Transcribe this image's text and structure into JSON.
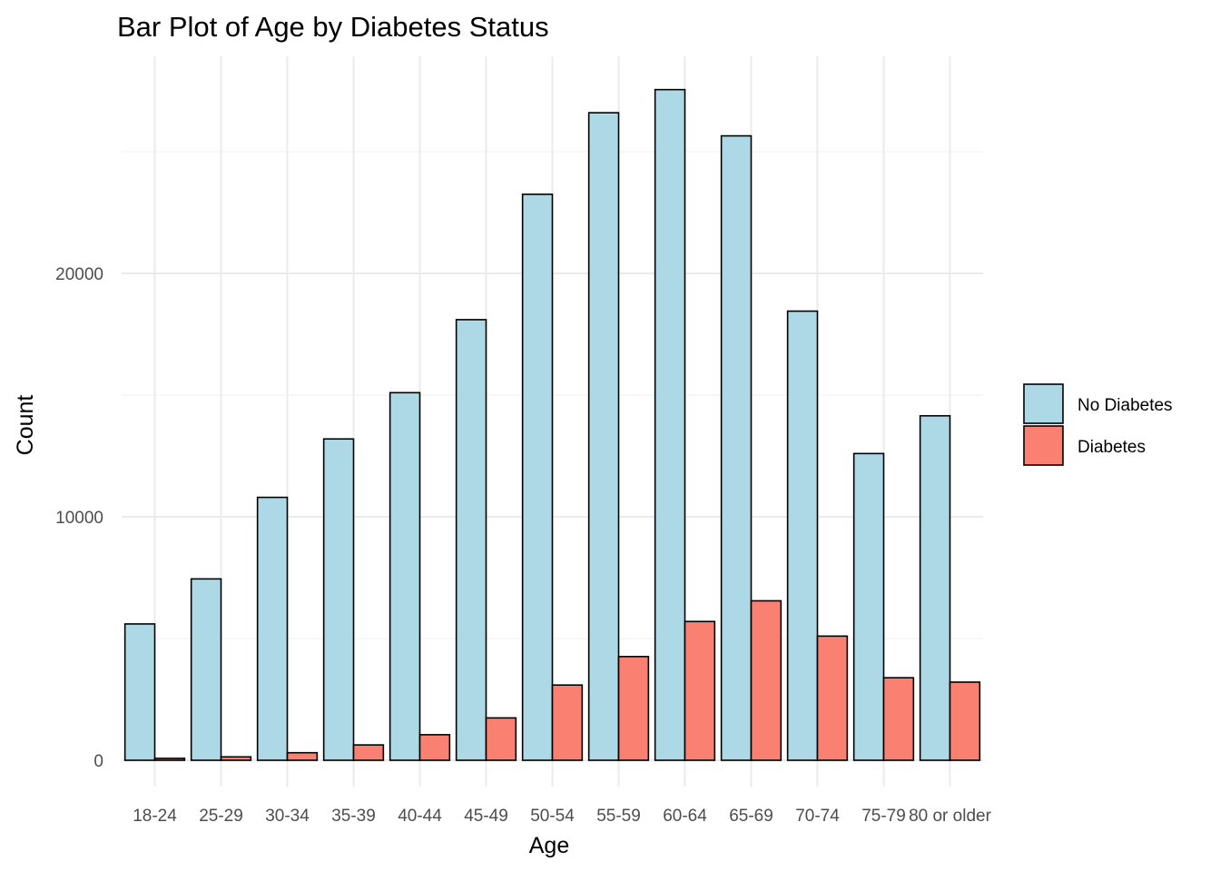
{
  "chart_data": {
    "type": "bar",
    "title": "Bar Plot of Age by Diabetes Status",
    "xlabel": "Age",
    "ylabel": "Count",
    "categories": [
      "18-24",
      "25-29",
      "30-34",
      "35-39",
      "40-44",
      "45-49",
      "50-54",
      "55-59",
      "60-64",
      "65-69",
      "70-74",
      "75-79",
      "80 or older"
    ],
    "series": [
      {
        "name": "No Diabetes",
        "color": "#ADD8E6",
        "values": [
          5600,
          7450,
          10800,
          13200,
          15100,
          18100,
          23250,
          26600,
          27550,
          25650,
          18450,
          12600,
          14150
        ]
      },
      {
        "name": "Diabetes",
        "color": "#FA8072",
        "values": [
          80,
          140,
          310,
          630,
          1050,
          1740,
          3090,
          4260,
          5700,
          6550,
          5100,
          3390,
          3210
        ]
      }
    ],
    "ylim": [
      0,
      29000
    ],
    "yticks": [
      0,
      10000,
      20000
    ],
    "grid": true,
    "legend_position": "right"
  }
}
